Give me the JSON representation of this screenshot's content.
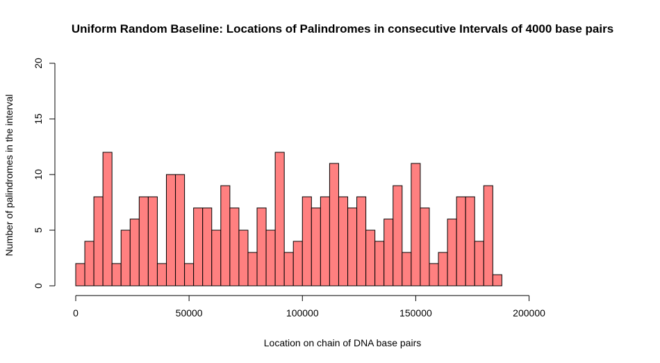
{
  "chart_data": {
    "type": "bar",
    "title": "Uniform Random Baseline: Locations of Palindromes in consecutive Intervals of 4000 base pairs",
    "xlabel": "Location on chain of DNA base pairs",
    "ylabel": "Number of palindromes in the interval",
    "bin_width": 4000,
    "x_start": 0,
    "xlim": [
      0,
      236000
    ],
    "ylim": [
      0,
      20
    ],
    "x_ticks": [
      0,
      50000,
      100000,
      150000,
      200000
    ],
    "y_ticks": [
      0,
      5,
      10,
      15,
      20
    ],
    "grid": false,
    "values": [
      2,
      4,
      8,
      12,
      2,
      5,
      6,
      8,
      8,
      2,
      10,
      10,
      2,
      7,
      7,
      5,
      9,
      7,
      5,
      3,
      7,
      5,
      12,
      3,
      4,
      8,
      7,
      8,
      11,
      8,
      7,
      8,
      5,
      4,
      6,
      9,
      3,
      11,
      7,
      2,
      3,
      6,
      8,
      8,
      4,
      9,
      1
    ],
    "bar_color": "#ff8080",
    "bar_stroke": "#000000"
  }
}
